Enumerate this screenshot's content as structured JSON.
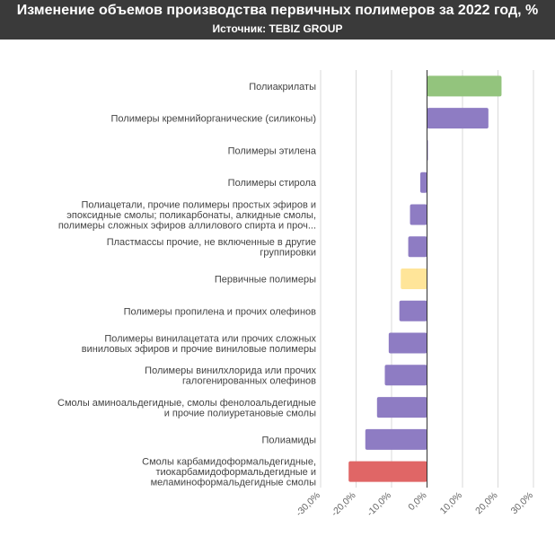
{
  "header": {
    "title": "Изменение объемов производства первичных полимеров за 2022 год, %",
    "subtitle": "Источник: TEBIZ GROUP"
  },
  "chart_data": {
    "type": "bar",
    "orientation": "horizontal",
    "categories": [
      [
        "Полиакрилаты"
      ],
      [
        "Полимеры кремнийорганические (силиконы)"
      ],
      [
        "Полимеры этилена"
      ],
      [
        "Полимеры стирола"
      ],
      [
        "Полиацетали, прочие полимеры простых эфиров и",
        "эпоксидные смолы; поликарбонаты, алкидные смолы,",
        "полимеры сложных эфиров аллилового спирта и проч..."
      ],
      [
        "Пластмассы прочие, не включенные в другие",
        "группировки"
      ],
      [
        "Первичные полимеры"
      ],
      [
        "Полимеры пропилена и прочих олефинов"
      ],
      [
        "Полимеры винилацетата или прочих сложных",
        "виниловых эфиров и прочие виниловые полимеры"
      ],
      [
        "Полимеры винилхлорида или прочих",
        "галогенированных олефинов"
      ],
      [
        "Смолы аминоальдегидные, смолы фенолоальдегидные",
        "и прочие полиуретановые смолы"
      ],
      [
        "Полиамиды"
      ],
      [
        "Смолы карбамидоформальдегидные,",
        "тиокарбамидоформальдегидные и",
        "меламиноформальдегидные смолы"
      ]
    ],
    "values": [
      21.0,
      17.3,
      0.1,
      -1.9,
      -4.8,
      -5.3,
      -7.4,
      -7.8,
      -10.8,
      -11.9,
      -14.1,
      -17.4,
      -22.1
    ],
    "colors": [
      "#93c47d",
      "#8e7cc3",
      "#8e7cc3",
      "#8e7cc3",
      "#8e7cc3",
      "#8e7cc3",
      "#ffe599",
      "#8e7cc3",
      "#8e7cc3",
      "#8e7cc3",
      "#8e7cc3",
      "#8e7cc3",
      "#e06666"
    ],
    "xlim": [
      -30,
      30
    ],
    "ticks": [
      -30,
      -20,
      -10,
      0,
      10,
      20,
      30
    ],
    "tick_labels": [
      "-30,0%",
      "-20,0%",
      "-10,0%",
      "0,0%",
      "10,0%",
      "20,0%",
      "30,0%"
    ],
    "grid": true,
    "xlabel": "",
    "ylabel": ""
  }
}
